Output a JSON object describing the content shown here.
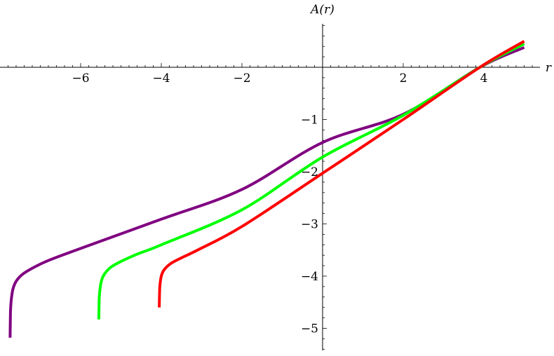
{
  "chart_data": {
    "type": "line",
    "title": "",
    "xlabel": "r",
    "ylabel": "A(r)",
    "xlim": [
      -7.9,
      5.7
    ],
    "ylim": [
      -5.5,
      0.85
    ],
    "x_ticks": [
      -6,
      -4,
      -2,
      2,
      4
    ],
    "x_tick_labels": [
      "−6",
      "−4",
      "−2",
      "2",
      "4"
    ],
    "y_ticks": [
      -1,
      -2,
      -3,
      -4,
      -5
    ],
    "y_tick_labels": [
      "−1",
      "−2",
      "−3",
      "−4",
      "−5"
    ],
    "grid": false,
    "series": [
      {
        "color": "#800080",
        "x": [
          -7.75,
          -7.74,
          -7.72,
          -7.68,
          -7.6,
          -7.45,
          -7.2,
          -6.8,
          -6.0,
          -4.0,
          -2.0,
          0.0,
          2.0,
          3.9,
          5.0
        ],
        "y": [
          -5.18,
          -4.7,
          -4.45,
          -4.25,
          -4.1,
          -3.97,
          -3.85,
          -3.7,
          -3.47,
          -2.91,
          -2.34,
          -1.44,
          -0.9,
          0.0,
          0.38
        ]
      },
      {
        "color": "#00ff00",
        "x": [
          -5.55,
          -5.54,
          -5.52,
          -5.48,
          -5.4,
          -5.25,
          -5.0,
          -4.6,
          -4.0,
          -2.0,
          0.0,
          2.0,
          3.9,
          5.0
        ],
        "y": [
          -4.83,
          -4.45,
          -4.25,
          -4.08,
          -3.95,
          -3.83,
          -3.72,
          -3.58,
          -3.4,
          -2.73,
          -1.72,
          -0.92,
          0.0,
          0.45
        ]
      },
      {
        "color": "#ff0000",
        "x": [
          -4.05,
          -4.04,
          -4.02,
          -3.98,
          -3.9,
          -3.75,
          -3.5,
          -3.1,
          -2.0,
          0.0,
          2.0,
          3.9,
          5.0
        ],
        "y": [
          -4.6,
          -4.25,
          -4.08,
          -3.95,
          -3.85,
          -3.75,
          -3.65,
          -3.5,
          -3.05,
          -2.03,
          -1.0,
          0.0,
          0.5
        ]
      }
    ]
  }
}
